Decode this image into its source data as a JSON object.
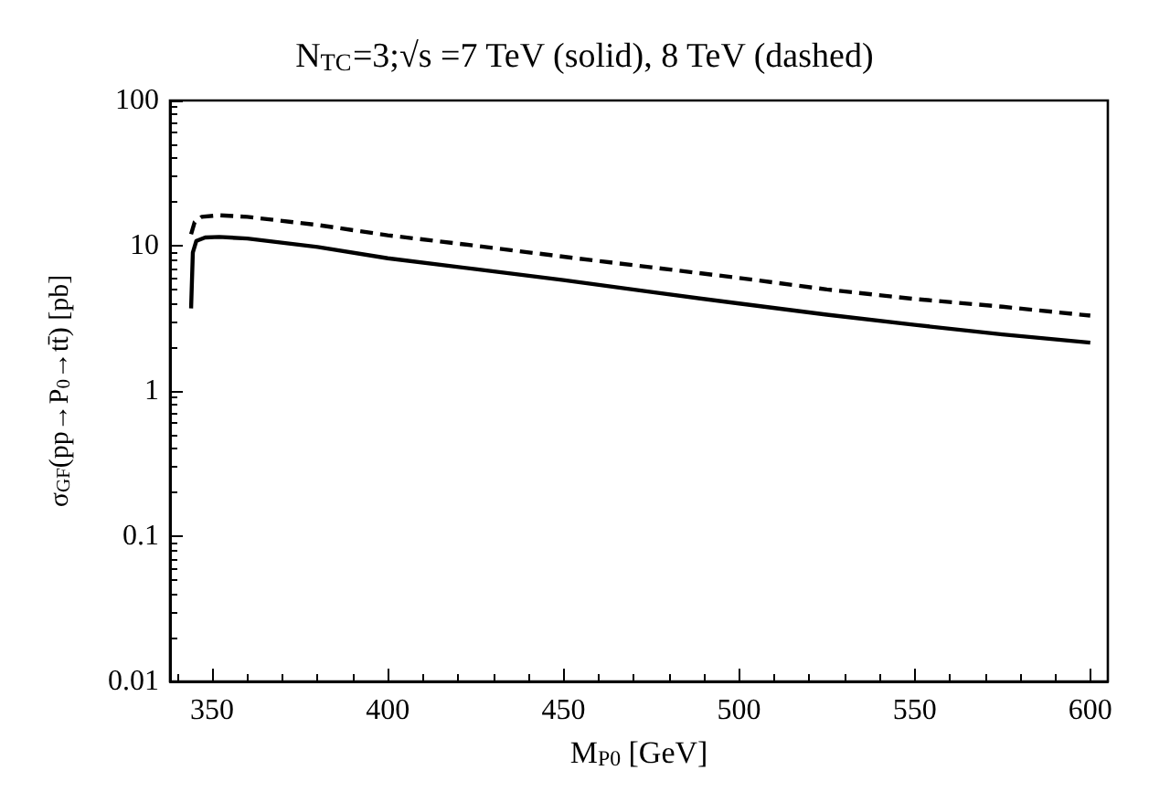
{
  "chart_data": {
    "type": "line",
    "title": "N$_{TC}$=3;√s =7 TeV (solid), 8 TeV (dashed)",
    "xlabel": "M$_{P0}$ [GeV]",
    "ylabel": "σ$_{GF}$(pp→P$_{0}$→tt̄) [pb]",
    "log": "y",
    "xlim": [
      338,
      605
    ],
    "xticks": [
      350,
      400,
      450,
      500,
      550,
      600
    ],
    "ylim": [
      0.01,
      100
    ],
    "yticks": [
      0.01,
      0.1,
      1,
      10,
      100
    ],
    "grid": false,
    "marker": "none",
    "series": [
      {
        "color": "#000000",
        "line_style": "solid",
        "x": [
          344,
          344.5,
          345.5,
          348,
          352,
          360,
          380,
          400,
          425,
          450,
          475,
          500,
          525,
          550,
          575,
          600
        ],
        "values": [
          3.7,
          9,
          10.8,
          11.4,
          11.5,
          11.2,
          9.8,
          8.2,
          6.9,
          5.8,
          4.8,
          4.0,
          3.35,
          2.85,
          2.45,
          2.15
        ]
      },
      {
        "color": "#000000",
        "line_style": "dashed",
        "x": [
          344,
          345,
          347,
          352,
          360,
          380,
          400,
          425,
          450,
          475,
          500,
          525,
          550,
          575,
          600
        ],
        "values": [
          12,
          14.5,
          15.8,
          16.2,
          15.8,
          13.9,
          11.8,
          10,
          8.4,
          7.1,
          6.0,
          5.0,
          4.3,
          3.8,
          3.3
        ]
      }
    ]
  }
}
